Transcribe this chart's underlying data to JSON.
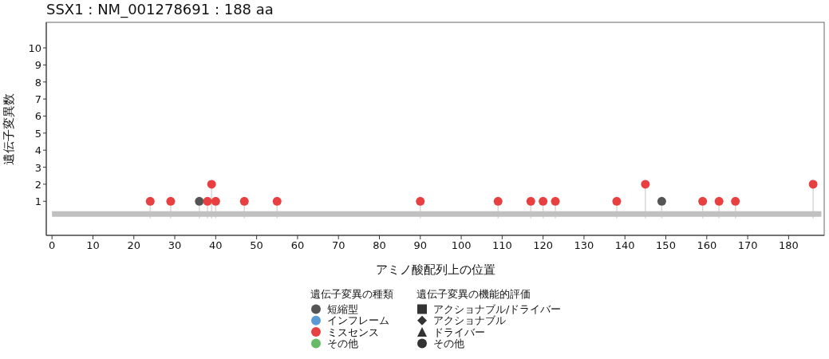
{
  "chart_data": {
    "type": "lollipop",
    "title": "SSX1 : NM_001278691 : 188 aa",
    "xlabel": "アミノ酸配列上の位置",
    "ylabel": "遺伝子変異数",
    "legend_title": "遺伝子変異の種類",
    "xlim": [
      -1.4,
      188.7
    ],
    "xticks": [
      0,
      10,
      20,
      30,
      40,
      50,
      60,
      70,
      80,
      90,
      100,
      110,
      120,
      130,
      140,
      150,
      160,
      170,
      180
    ],
    "ylim": [
      -1,
      11.5
    ],
    "yticks": [
      1,
      2,
      3,
      4,
      5,
      6,
      7,
      8,
      9,
      10
    ],
    "grid": false,
    "legend": "bottom",
    "annotations": [
      "遺伝子変異の機能的評価"
    ],
    "series": [
      {
        "name": "短縮型",
        "color": "#555555",
        "marker": "circle",
        "x": [
          36,
          149
        ],
        "values": [
          1,
          1
        ]
      },
      {
        "name": "インフレーム",
        "color": "#5b9bd5",
        "marker": "circle"
      },
      {
        "name": "ミスセンス",
        "color": "#e84040",
        "marker": "circle",
        "x": [
          24,
          29,
          38,
          39,
          40,
          47,
          55,
          90,
          109,
          117,
          120,
          123,
          138,
          145,
          159,
          163,
          167,
          186
        ],
        "values": [
          1,
          1,
          1,
          2,
          1,
          1,
          1,
          1,
          1,
          1,
          1,
          1,
          1,
          2,
          1,
          1,
          1,
          2
        ]
      },
      {
        "name": "その他",
        "color": "#66bb66",
        "marker": "circle"
      },
      {
        "name": "アクショナブル/ドライバー",
        "type": "scatter",
        "color": "#333333",
        "marker": "square"
      },
      {
        "name": "アクショナブル",
        "type": "scatter",
        "color": "#333333",
        "marker": "diamond"
      },
      {
        "name": "ドライバー",
        "type": "scatter",
        "color": "#333333",
        "marker": "triangle"
      },
      {
        "name": "その他",
        "type": "scatter",
        "color": "#333333",
        "marker": "circle"
      },
      {
        "type": "line",
        "color": "#c0c0c0",
        "x": [
          0,
          188
        ],
        "values": [
          0.25,
          0.25
        ]
      }
    ]
  }
}
